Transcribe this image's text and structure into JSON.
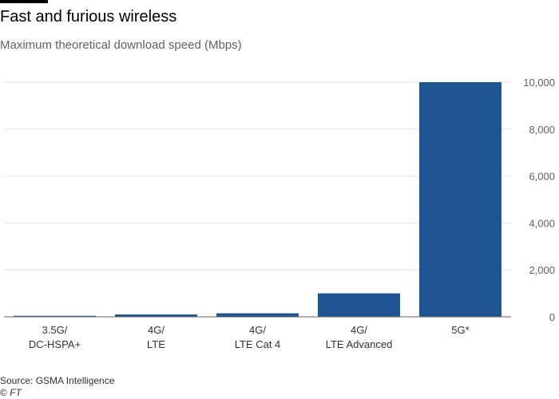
{
  "header": {
    "title": "Fast and furious wireless",
    "subtitle": "Maximum theoretical download speed (Mbps)"
  },
  "chart_data": {
    "type": "bar",
    "title": "Fast and furious wireless",
    "subtitle": "Maximum theoretical download speed (Mbps)",
    "categories": [
      [
        "3.5G/",
        "DC-HSPA+"
      ],
      [
        "4G/",
        "LTE"
      ],
      [
        "4G/",
        "LTE Cat 4"
      ],
      [
        "4G/",
        "LTE Advanced"
      ],
      [
        "5G*"
      ]
    ],
    "values": [
      42,
      100,
      150,
      1000,
      10000
    ],
    "ylim": [
      0,
      10000
    ],
    "yticks": [
      0,
      2000,
      4000,
      6000,
      8000,
      10000
    ],
    "ytick_labels": [
      "0",
      "2,000",
      "4,000",
      "6,000",
      "8,000",
      "10,000"
    ],
    "y_axis_side": "right",
    "grid": true,
    "bar_color": "#1f5591",
    "grid_color": "#e3e0dd",
    "baseline_color": "#66605c"
  },
  "footer": {
    "source": "Source: GSMA Intelligence",
    "copyright_symbol": "©",
    "brand": "FT"
  }
}
